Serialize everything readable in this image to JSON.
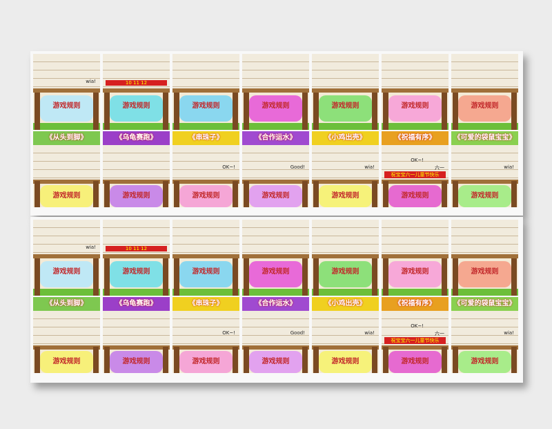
{
  "rows": [
    {
      "cards": [
        {
          "rule_title": "游戏规则",
          "labels": [
            "wia!"
          ]
        },
        {
          "rule_title": "游戏规则",
          "labels": [
            "10 11 12"
          ]
        },
        {
          "rule_title": "游戏规则",
          "labels": []
        },
        {
          "rule_title": "游戏规则",
          "labels": []
        },
        {
          "rule_title": "游戏规则",
          "labels": []
        },
        {
          "rule_title": "游戏规则",
          "labels": []
        },
        {
          "rule_title": "游戏规则",
          "labels": []
        }
      ]
    },
    {
      "cards": [
        {
          "title": "《从头到脚》",
          "rule_title": "游戏规则",
          "labels": []
        },
        {
          "title": "《乌龟赛跑》",
          "rule_title": "游戏规则",
          "labels": []
        },
        {
          "title": "《串珠子》",
          "rule_title": "游戏规则",
          "labels": [
            "OK~!"
          ]
        },
        {
          "title": "《合作运水》",
          "rule_title": "游戏规则",
          "labels": [
            "Good!"
          ]
        },
        {
          "title": "《小鸡出壳》",
          "rule_title": "游戏规则",
          "labels": [
            "wia!"
          ]
        },
        {
          "title": "《祝福有序》",
          "rule_title": "游戏规则",
          "labels": [
            "六一",
            "OK~!",
            "祝宝宝六一儿童节快乐"
          ]
        },
        {
          "title": "《可爱的袋鼠宝宝》",
          "rule_title": "游戏规则",
          "labels": [
            "wia!"
          ]
        }
      ]
    },
    {
      "cards": [
        {
          "rule_title": "游戏规则",
          "labels": [
            "wia!"
          ]
        },
        {
          "rule_title": "游戏规则",
          "labels": [
            "10 11 12"
          ]
        },
        {
          "rule_title": "游戏规则",
          "labels": []
        },
        {
          "rule_title": "游戏规则",
          "labels": []
        },
        {
          "rule_title": "游戏规则",
          "labels": []
        },
        {
          "rule_title": "游戏规则",
          "labels": []
        },
        {
          "rule_title": "游戏规则",
          "labels": []
        }
      ]
    },
    {
      "cards": [
        {
          "title": "《从头到脚》",
          "rule_title": "游戏规则",
          "labels": []
        },
        {
          "title": "《乌龟赛跑》",
          "rule_title": "游戏规则",
          "labels": []
        },
        {
          "title": "《串珠子》",
          "rule_title": "游戏规则",
          "labels": [
            "OK~!"
          ]
        },
        {
          "title": "《合作运水》",
          "rule_title": "游戏规则",
          "labels": [
            "Good!"
          ]
        },
        {
          "title": "《小鸡出壳》",
          "rule_title": "游戏规则",
          "labels": [
            "wia!"
          ]
        },
        {
          "title": "《祝福有序》",
          "rule_title": "游戏规则",
          "labels": [
            "六一",
            "OK~!",
            "祝宝宝六一儿童节快乐"
          ]
        },
        {
          "title": "《可爱的袋鼠宝宝》",
          "rule_title": "游戏规则",
          "labels": [
            "wia!"
          ]
        }
      ]
    }
  ]
}
